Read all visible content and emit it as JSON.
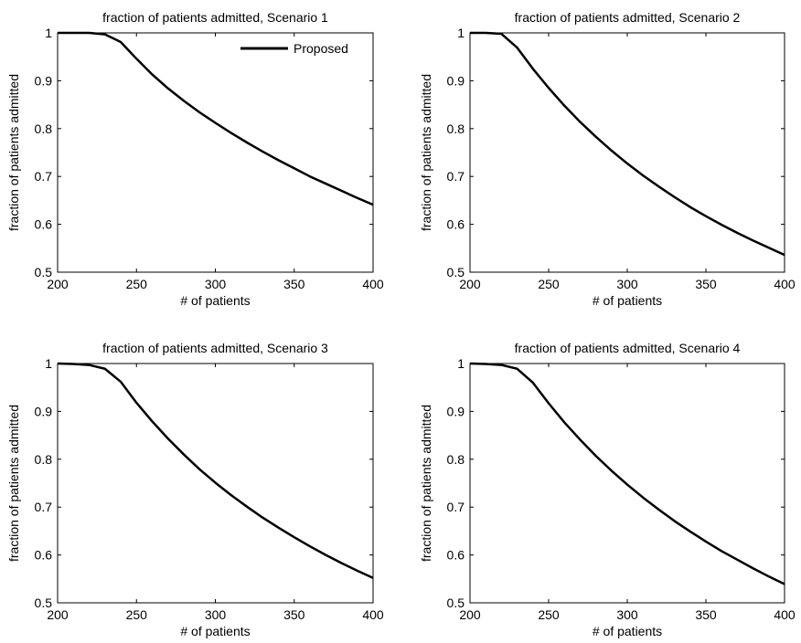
{
  "chart_data": [
    {
      "type": "line",
      "title": "fraction of patients admitted, Scenario 1",
      "xlabel": "# of patients",
      "ylabel": "fraction of patients admitted",
      "xlim": [
        200,
        400
      ],
      "ylim": [
        0.5,
        1
      ],
      "xticks": [
        "200",
        "250",
        "300",
        "350",
        "400"
      ],
      "yticks": [
        "0.5",
        "0.6",
        "0.7",
        "0.8",
        "0.9",
        "1"
      ],
      "grid": false,
      "legend": {
        "entries": [
          "Proposed"
        ],
        "placement": "top-right"
      },
      "series": [
        {
          "name": "Proposed",
          "color": "#000000",
          "x": [
            200,
            210,
            220,
            230,
            240,
            250,
            260,
            270,
            280,
            290,
            300,
            310,
            320,
            330,
            340,
            350,
            360,
            370,
            380,
            390,
            400
          ],
          "y": [
            1.0,
            1.0,
            1.0,
            0.997,
            0.981,
            0.946,
            0.913,
            0.884,
            0.858,
            0.834,
            0.812,
            0.791,
            0.771,
            0.752,
            0.734,
            0.717,
            0.7,
            0.685,
            0.67,
            0.655,
            0.641
          ]
        }
      ]
    },
    {
      "type": "line",
      "title": "fraction of patients admitted, Scenario 2",
      "xlabel": "# of patients",
      "ylabel": "fraction of patients admitted",
      "xlim": [
        200,
        400
      ],
      "ylim": [
        0.5,
        1
      ],
      "xticks": [
        "200",
        "250",
        "300",
        "350",
        "400"
      ],
      "yticks": [
        "0.5",
        "0.6",
        "0.7",
        "0.8",
        "0.9",
        "1"
      ],
      "grid": false,
      "series": [
        {
          "name": "Proposed",
          "color": "#000000",
          "x": [
            200,
            210,
            220,
            230,
            240,
            250,
            260,
            270,
            280,
            290,
            300,
            310,
            320,
            330,
            340,
            350,
            360,
            370,
            380,
            390,
            400
          ],
          "y": [
            1.0,
            1.0,
            0.998,
            0.969,
            0.925,
            0.885,
            0.848,
            0.814,
            0.783,
            0.754,
            0.727,
            0.702,
            0.679,
            0.657,
            0.636,
            0.617,
            0.599,
            0.582,
            0.566,
            0.551,
            0.536
          ]
        }
      ]
    },
    {
      "type": "line",
      "title": "fraction of patients admitted, Scenario 3",
      "xlabel": "# of patients",
      "ylabel": "fraction of patients admitted",
      "xlim": [
        200,
        400
      ],
      "ylim": [
        0.5,
        1
      ],
      "xticks": [
        "200",
        "250",
        "300",
        "350",
        "400"
      ],
      "yticks": [
        "0.5",
        "0.6",
        "0.7",
        "0.8",
        "0.9",
        "1"
      ],
      "grid": false,
      "series": [
        {
          "name": "Proposed",
          "color": "#000000",
          "x": [
            200,
            210,
            220,
            230,
            240,
            250,
            260,
            270,
            280,
            290,
            300,
            310,
            320,
            330,
            340,
            350,
            360,
            370,
            380,
            390,
            400
          ],
          "y": [
            1.0,
            0.999,
            0.997,
            0.989,
            0.962,
            0.918,
            0.879,
            0.843,
            0.81,
            0.779,
            0.751,
            0.725,
            0.701,
            0.678,
            0.657,
            0.637,
            0.618,
            0.6,
            0.583,
            0.567,
            0.552
          ]
        }
      ]
    },
    {
      "type": "line",
      "title": "fraction of patients admitted, Scenario 4",
      "xlabel": "# of patients",
      "ylabel": "fraction of patients admitted",
      "xlim": [
        200,
        400
      ],
      "ylim": [
        0.5,
        1
      ],
      "xticks": [
        "200",
        "250",
        "300",
        "350",
        "400"
      ],
      "yticks": [
        "0.5",
        "0.6",
        "0.7",
        "0.8",
        "0.9",
        "1"
      ],
      "grid": false,
      "series": [
        {
          "name": "Proposed",
          "color": "#000000",
          "x": [
            200,
            210,
            220,
            230,
            240,
            250,
            260,
            270,
            280,
            290,
            300,
            310,
            320,
            330,
            340,
            350,
            360,
            370,
            380,
            390,
            400
          ],
          "y": [
            1.0,
            0.999,
            0.997,
            0.989,
            0.96,
            0.917,
            0.877,
            0.841,
            0.807,
            0.776,
            0.747,
            0.72,
            0.695,
            0.671,
            0.649,
            0.628,
            0.608,
            0.59,
            0.572,
            0.555,
            0.539
          ]
        }
      ]
    }
  ]
}
